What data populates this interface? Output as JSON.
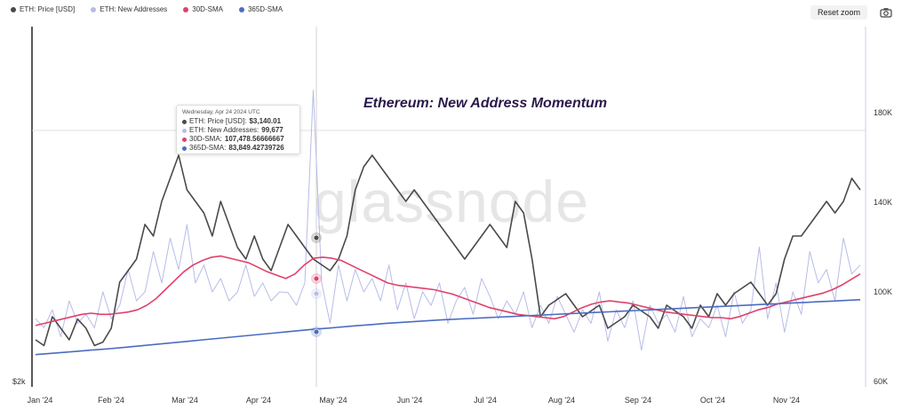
{
  "legend": [
    {
      "label": "ETH: Price [USD]",
      "color": "#4a4a4a"
    },
    {
      "label": "ETH: New Addresses",
      "color": "#b7bce8"
    },
    {
      "label": "30D-SMA",
      "color": "#e0406a"
    },
    {
      "label": "365D-SMA",
      "color": "#4b6cc1"
    }
  ],
  "toolbar": {
    "reset_label": "Reset zoom",
    "camera_icon": "camera-icon"
  },
  "watermark": "glassnode",
  "tooltip": {
    "date": "Wednesday, Apr 24 2024 UTC",
    "rows": [
      {
        "label": "ETH: Price [USD]: ",
        "value": "$3,140.01",
        "color": "#4a4a4a"
      },
      {
        "label": "ETH: New Addresses: ",
        "value": "99,677",
        "color": "#b7bce8"
      },
      {
        "label": "30D-SMA: ",
        "value": "107,478.56666667",
        "color": "#e0406a"
      },
      {
        "label": "365D-SMA: ",
        "value": "83,849.42739726",
        "color": "#4b6cc1"
      }
    ]
  },
  "chart_data": {
    "type": "line",
    "title": "Ethereum: New Address Momentum",
    "x_ticks": [
      "Jan '24",
      "Feb '24",
      "Mar '24",
      "Apr '24",
      "May '24",
      "Jun '24",
      "Jul '24",
      "Aug '24",
      "Sep '24",
      "Oct '24",
      "Nov '24"
    ],
    "y_right_ticks": [
      "180K",
      "140K",
      "100K",
      "60K"
    ],
    "y_right_range": [
      60000,
      180000
    ],
    "y_left_label": "$2k",
    "grid": false,
    "series": [
      {
        "name": "ETH: Price [USD]",
        "color": "#4a4a4a",
        "values": [
          2300,
          2250,
          2500,
          2400,
          2300,
          2480,
          2400,
          2250,
          2280,
          2400,
          2800,
          2900,
          3000,
          3300,
          3200,
          3500,
          3700,
          3900,
          3600,
          3500,
          3400,
          3200,
          3500,
          3300,
          3100,
          3000,
          3200,
          3000,
          2900,
          3100,
          3300,
          3200,
          3100,
          3000,
          2950,
          2900,
          3000,
          3200,
          3600,
          3800,
          3900,
          3800,
          3700,
          3600,
          3500,
          3600,
          3500,
          3400,
          3300,
          3200,
          3100,
          3000,
          3100,
          3200,
          3300,
          3200,
          3100,
          3500,
          3400,
          3000,
          2500,
          2600,
          2650,
          2700,
          2600,
          2500,
          2550,
          2600,
          2400,
          2450,
          2500,
          2600,
          2550,
          2500,
          2400,
          2600,
          2550,
          2500,
          2400,
          2600,
          2500,
          2700,
          2600,
          2700,
          2750,
          2800,
          2700,
          2600,
          2700,
          3000,
          3200,
          3200,
          3300,
          3400,
          3500,
          3400,
          3500,
          3700,
          3600
        ]
      },
      {
        "name": "ETH: New Addresses",
        "color": "#b7bce8",
        "values": [
          88000,
          84000,
          92000,
          80000,
          96000,
          86000,
          90000,
          84000,
          100000,
          88000,
          94000,
          110000,
          96000,
          100000,
          118000,
          104000,
          124000,
          110000,
          130000,
          104000,
          112000,
          100000,
          106000,
          96000,
          100000,
          112000,
          98000,
          104000,
          96000,
          100000,
          99677,
          94000,
          104000,
          190000,
          104000,
          86000,
          112000,
          96000,
          110000,
          100000,
          106000,
          96000,
          112000,
          92000,
          104000,
          88000,
          100000,
          94000,
          104000,
          86000,
          96000,
          102000,
          90000,
          106000,
          98000,
          88000,
          96000,
          90000,
          100000,
          84000,
          94000,
          86000,
          98000,
          90000,
          82000,
          92000,
          86000,
          100000,
          78000,
          92000,
          84000,
          96000,
          74000,
          94000,
          86000,
          90000,
          82000,
          98000,
          80000,
          88000,
          84000,
          94000,
          80000,
          100000,
          86000,
          92000,
          120000,
          88000,
          104000,
          82000,
          100000,
          90000,
          118000,
          104000,
          110000,
          96000,
          124000,
          108000,
          112000
        ]
      },
      {
        "name": "30D-SMA",
        "color": "#e0406a",
        "values": [
          85000,
          86000,
          87000,
          88000,
          89000,
          90000,
          90500,
          90000,
          90000,
          90500,
          91000,
          92000,
          94000,
          97000,
          101000,
          105000,
          109000,
          112000,
          114000,
          115500,
          116000,
          115000,
          114000,
          113000,
          111000,
          109000,
          107478,
          106000,
          108000,
          112000,
          115000,
          115500,
          115000,
          114000,
          112000,
          110000,
          108000,
          106000,
          104000,
          103000,
          102500,
          102000,
          101500,
          101000,
          100000,
          99000,
          97500,
          96000,
          94500,
          93000,
          92000,
          91000,
          90000,
          89500,
          89000,
          88500,
          88000,
          89000,
          91000,
          93000,
          94500,
          95500,
          96000,
          95500,
          95000,
          94000,
          93000,
          92000,
          91000,
          90500,
          90000,
          89500,
          89000,
          88500,
          88500,
          88000,
          89000,
          90500,
          92000,
          93000,
          94500,
          95500,
          96500,
          97500,
          98500,
          99500,
          101000,
          103000,
          105500,
          108000
        ]
      },
      {
        "name": "365D-SMA",
        "color": "#4b6cc1",
        "values": [
          72000,
          72500,
          73000,
          73500,
          74000,
          74500,
          75000,
          75600,
          76200,
          76800,
          77400,
          78000,
          78600,
          79200,
          79800,
          80400,
          81000,
          81600,
          82200,
          82800,
          83400,
          83849,
          84400,
          84900,
          85400,
          85900,
          86300,
          86700,
          87100,
          87500,
          87800,
          88100,
          88400,
          88700,
          89000,
          89300,
          89600,
          89900,
          90200,
          90500,
          90800,
          91100,
          91400,
          91700,
          92000,
          92300,
          92600,
          92900,
          93200,
          93500,
          93800,
          94100,
          94400,
          94700,
          95000,
          95300,
          95600,
          95900,
          96200,
          96500
        ]
      }
    ]
  }
}
